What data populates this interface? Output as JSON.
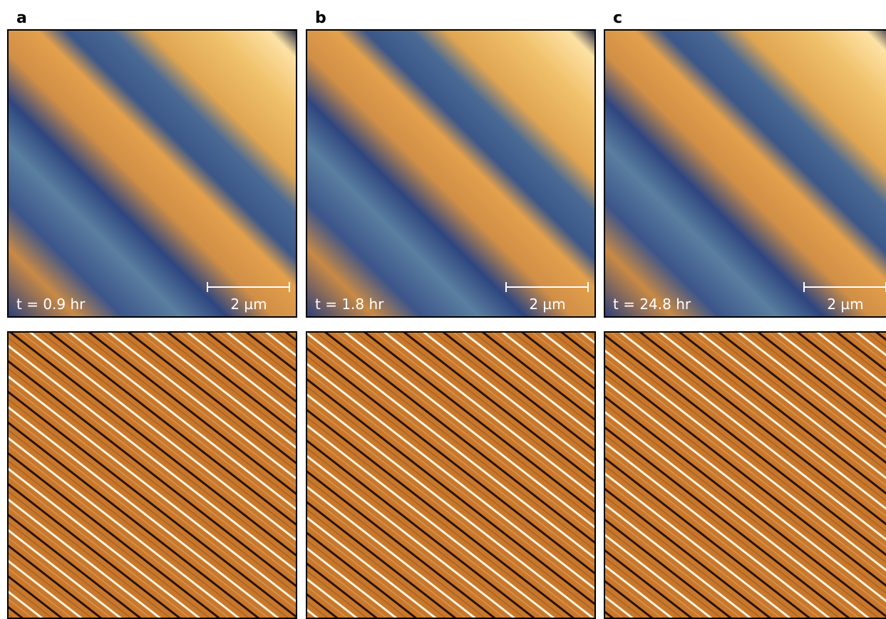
{
  "panels": [
    {
      "label": "a",
      "time": "t = 0.9 hr",
      "scale": "2 µm"
    },
    {
      "label": "b",
      "time": "t = 1.8 hr",
      "scale": "2 µm"
    },
    {
      "label": "c",
      "time": "t = 24.8 hr",
      "scale": "2 µm"
    }
  ]
}
